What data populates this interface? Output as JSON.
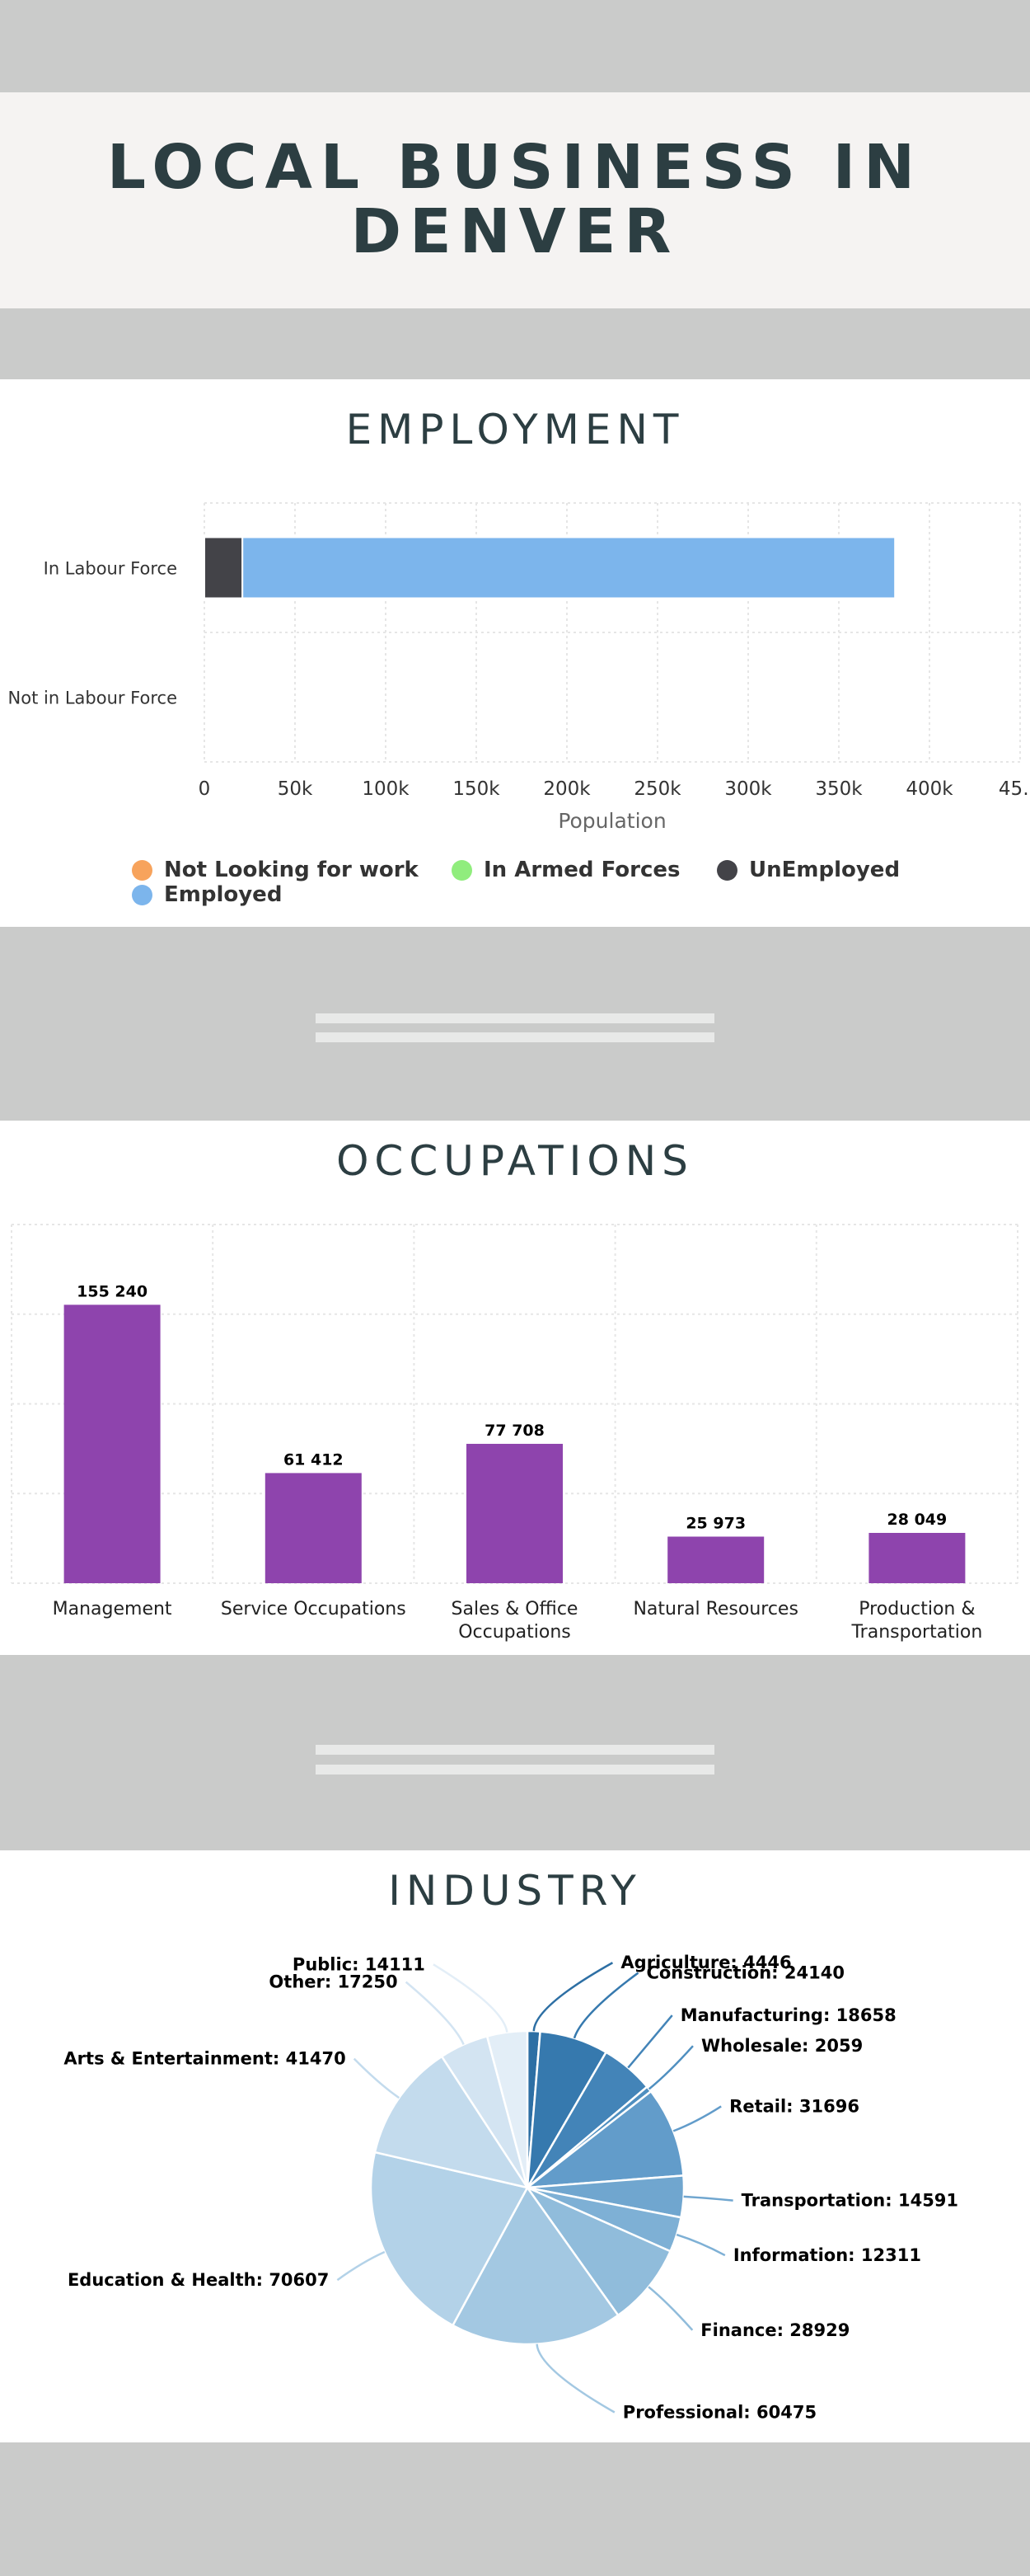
{
  "header": {
    "title": "LOCAL BUSINESS IN DENVER"
  },
  "employment": {
    "title": "EMPLOYMENT",
    "legend": [
      {
        "label": "Not Looking for work",
        "color": "#f7a35c"
      },
      {
        "label": "In Armed Forces",
        "color": "#90ed7d"
      },
      {
        "label": "UnEmployed",
        "color": "#434348"
      },
      {
        "label": "Employed",
        "color": "#7cb5ec"
      }
    ]
  },
  "occupations": {
    "title": "OCCUPATIONS"
  },
  "industry": {
    "title": "INDUSTRY"
  },
  "chart_data": [
    {
      "type": "bar",
      "orientation": "horizontal",
      "stacked": true,
      "categories": [
        "In Labour Force",
        "Not in Labour Force"
      ],
      "xlabel": "Population",
      "xlim": [
        0,
        450000
      ],
      "tick_labels": [
        "0",
        "50k",
        "100k",
        "150k",
        "200k",
        "250k",
        "300k",
        "350k",
        "400k",
        "45…"
      ],
      "grid": true,
      "legend_position": "bottom",
      "series": [
        {
          "name": "UnEmployed",
          "color": "#434348",
          "values": [
            21000,
            0
          ]
        },
        {
          "name": "Employed",
          "color": "#7cb5ec",
          "values": [
            360000,
            0
          ]
        },
        {
          "name": "Not Looking for work",
          "color": "#f7a35c",
          "values": [
            0,
            0
          ]
        },
        {
          "name": "In Armed Forces",
          "color": "#90ed7d",
          "values": [
            0,
            0
          ]
        }
      ]
    },
    {
      "type": "bar",
      "categories": [
        "Management",
        "Service Occupations",
        "Sales & Office Occupations",
        "Natural Resources",
        "Production & Transportation"
      ],
      "category_lines": [
        [
          "Management"
        ],
        [
          "Service Occupations"
        ],
        [
          "Sales & Office",
          "Occupations"
        ],
        [
          "Natural Resources"
        ],
        [
          "Production &",
          "Transportation"
        ]
      ],
      "values": [
        155240,
        61412,
        77708,
        25973,
        28049
      ],
      "data_labels": [
        "155 240",
        "61 412",
        "77 708",
        "25 973",
        "28 049"
      ],
      "color": "#8e44ad",
      "ylim": [
        0,
        200000
      ],
      "grid": true
    },
    {
      "type": "pie",
      "slices": [
        {
          "label": "Agriculture: 4446",
          "value": 4446,
          "color": "#2d6fa4"
        },
        {
          "label": "Construction: 24140",
          "value": 24140,
          "color": "#3679ae"
        },
        {
          "label": "Manufacturing: 18658",
          "value": 18658,
          "color": "#4384b8"
        },
        {
          "label": "Wholesale: 2059",
          "value": 2059,
          "color": "#4f8fc0"
        },
        {
          "label": "Retail: 31696",
          "value": 31696,
          "color": "#629cca"
        },
        {
          "label": "Transportation: 14591",
          "value": 14591,
          "color": "#70a6cf"
        },
        {
          "label": "Information: 12311",
          "value": 12311,
          "color": "#7eb0d5"
        },
        {
          "label": "Finance: 28929",
          "value": 28929,
          "color": "#90bcdb"
        },
        {
          "label": "Professional: 60475",
          "value": 60475,
          "color": "#a3c8e2"
        },
        {
          "label": "Education & Health: 70607",
          "value": 70607,
          "color": "#b3d2e8"
        },
        {
          "label": "Arts & Entertainment: 41470",
          "value": 41470,
          "color": "#c3dbed"
        },
        {
          "label": "Other: 17250",
          "value": 17250,
          "color": "#d3e4f2"
        },
        {
          "label": "Public: 14111",
          "value": 14111,
          "color": "#e3eef7"
        }
      ]
    }
  ]
}
